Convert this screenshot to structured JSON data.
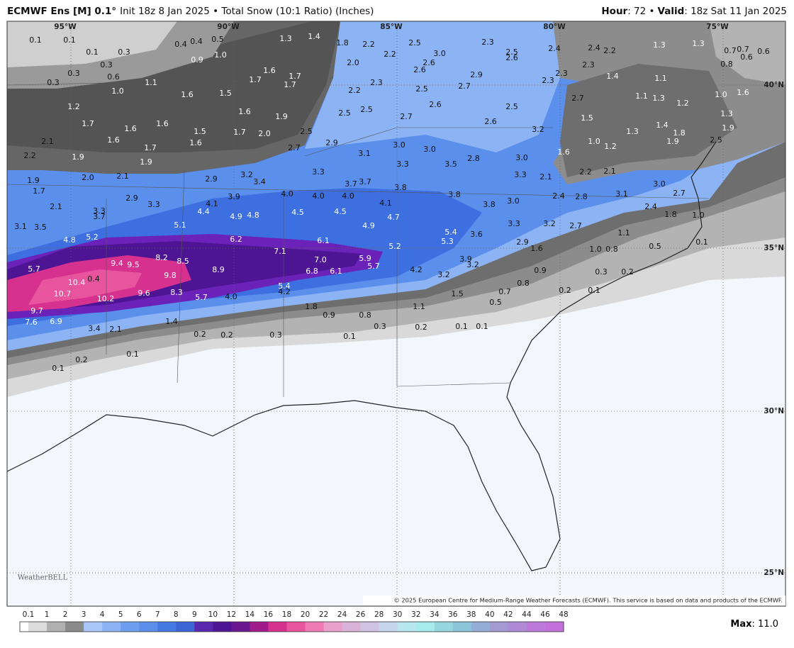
{
  "header": {
    "model": "ECMWF Ens [M] 0.1°",
    "description": "Init 18z 8 Jan 2025 • Total Snow (10:1 Ratio) (Inches)",
    "hour_label": "Hour",
    "hour_value": ": 72 •",
    "valid_label": "Valid",
    "valid_value": ": 18z Sat 11 Jan 2025"
  },
  "map": {
    "lon_labels": [
      "95°W",
      "90°W",
      "85°W",
      "80°W",
      "75°W"
    ],
    "lat_labels": [
      "40°N",
      "35°N",
      "30°N",
      "25°N"
    ],
    "values": [
      "0.1",
      "0.1",
      "0.1",
      "0.3",
      "0.4",
      "0.4",
      "0.5",
      "1.3",
      "1.4",
      "1.8",
      "2.2",
      "2.5",
      "2.2",
      "3.0",
      "2.3",
      "2.5",
      "2.6",
      "2.4",
      "2.4",
      "2.2",
      "1.3",
      "1.3",
      "0.7",
      "0.7",
      "0.6",
      "0.6",
      "0.8",
      "0.3",
      "0.9",
      "1.0",
      "2.0",
      "2.6",
      "2.6",
      "2.9",
      "2.3",
      "2.3",
      "2.3",
      "0.3",
      "0.6",
      "0.3",
      "1.1",
      "1.6",
      "1.7",
      "1.7",
      "1.7",
      "2.3",
      "2.2",
      "2.5",
      "2.7",
      "1.4",
      "1.1",
      "1.0",
      "1.6",
      "1.5",
      "1.1",
      "1.3",
      "1.0",
      "1.6",
      "1.2",
      "2.6",
      "2.5",
      "2.7",
      "1.2",
      "1.6",
      "1.9",
      "2.5",
      "2.5",
      "2.7",
      "1.3",
      "1.7",
      "1.6",
      "1.6",
      "2.6",
      "1.5",
      "1.5",
      "1.7",
      "2.0",
      "2.5",
      "3.2",
      "1.3",
      "1.4",
      "1.8",
      "1.9",
      "1.6",
      "1.6",
      "2.1",
      "2.9",
      "3.0",
      "3.0",
      "1.7",
      "2.7",
      "3.1",
      "2.8",
      "1.0",
      "1.2",
      "1.6",
      "1.9",
      "2.5",
      "2.2",
      "1.9",
      "1.9",
      "3.3",
      "3.5",
      "3.0",
      "3.3",
      "3.2",
      "3.4",
      "3.7",
      "3.7",
      "3.8",
      "3.3",
      "2.1",
      "2.2",
      "2.1",
      "1.9",
      "2.0",
      "2.1",
      "2.9",
      "3.0",
      "2.7",
      "1.7",
      "4.0",
      "4.0",
      "4.0",
      "3.8",
      "3.9",
      "2.9",
      "3.3",
      "4.1",
      "3.0",
      "3.8",
      "2.4",
      "2.8",
      "3.1",
      "2.1",
      "4.1",
      "4.5",
      "3.3",
      "3.7",
      "4.4",
      "4.9",
      "4.8",
      "4.5",
      "4.7",
      "4.9",
      "2.4",
      "1.8",
      "1.0",
      "3.3",
      "3.2",
      "2.7",
      "3.1",
      "3.5",
      "5.1",
      "5.4",
      "3.6",
      "4.8",
      "5.2",
      "6.2",
      "6.1",
      "5.3",
      "2.9",
      "1.1",
      "5.2",
      "1.6",
      "1.0",
      "0.8",
      "0.5",
      "0.1",
      "7.1",
      "8.2",
      "8.5",
      "9.5",
      "9.4",
      "7.0",
      "5.9",
      "5.7",
      "3.9",
      "3.2",
      "5.7",
      "8.9",
      "6.8",
      "6.1",
      "4.2",
      "3.2",
      "0.9",
      "0.3",
      "0.2",
      "9.8",
      "10.4",
      "0.4",
      "0.8",
      "10.7",
      "9.6",
      "8.3",
      "5.7",
      "4.0",
      "5.4",
      "4.2",
      "1.5",
      "0.7",
      "0.2",
      "0.1",
      "10.2",
      "0.5",
      "1.1",
      "1.8",
      "9.7",
      "1.4",
      "0.9",
      "0.8",
      "7.6",
      "6.9",
      "3.4",
      "2.1",
      "0.2",
      "0.2",
      "0.3",
      "0.3",
      "0.2",
      "0.1",
      "0.1",
      "0.1",
      "0.1",
      "0.2",
      "0.1"
    ]
  },
  "copyright": "© 2025 European Centre for Medium-Range Weather Forecasts (ECMWF). This service is based on data and products of the ECMWF.",
  "logo": "WeatherBELL",
  "colorbar": {
    "labels": [
      "0.1",
      "1",
      "2",
      "3",
      "4",
      "5",
      "6",
      "7",
      "8",
      "9",
      "10",
      "12",
      "14",
      "16",
      "18",
      "20",
      "22",
      "24",
      "26",
      "28",
      "30",
      "32",
      "34",
      "36",
      "38",
      "40",
      "42",
      "44",
      "46",
      "48"
    ]
  },
  "max": {
    "label": "Max",
    "value": ": 11.0"
  }
}
